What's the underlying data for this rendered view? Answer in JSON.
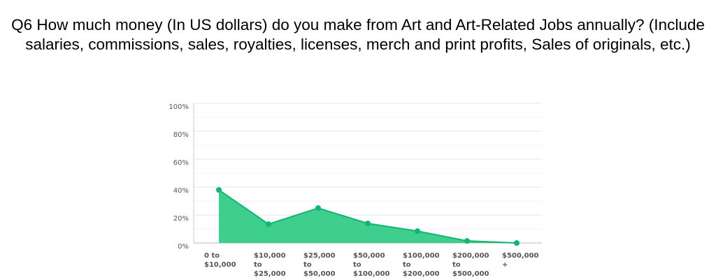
{
  "chart_data": {
    "type": "area",
    "title": "Q6 How much money (In US dollars) do you make from Art and Art-Related Jobs annually? (Include salaries, commissions, sales, royalties, licenses, merch and print profits, Sales of originals, etc.)",
    "categories": [
      "0 to $10,000",
      "$10,000 to $25,000",
      "$25,000 to $50,000",
      "$50,000 to $100,000",
      "$100,000 to $200,000",
      "$200,000 to $500,000",
      "$500,000 +"
    ],
    "values": [
      38,
      13.5,
      25,
      14,
      8.5,
      1.5,
      0
    ],
    "color": "#3ecf8e",
    "line_color": "#13b56f",
    "ylim": [
      0,
      100
    ],
    "yticks": [
      {
        "value": 0,
        "label": "0%"
      },
      {
        "value": 20,
        "label": "20%"
      },
      {
        "value": 40,
        "label": "40%"
      },
      {
        "value": 60,
        "label": "60%"
      },
      {
        "value": 80,
        "label": "80%"
      },
      {
        "value": 100,
        "label": "100%"
      }
    ],
    "minor_yticks": [
      10,
      30,
      50,
      70,
      90
    ],
    "grid": true
  }
}
